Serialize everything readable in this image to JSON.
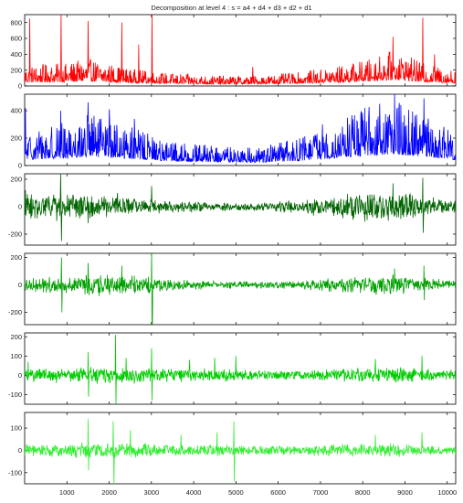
{
  "figure": {
    "title": "Decomposition at level 4 : s = a4 + d4 + d3 + d2 + d1"
  },
  "chart_data": [
    {
      "type": "line",
      "name": "",
      "color": "#ff0000",
      "xlim": [
        0,
        10200
      ],
      "ylim": [
        0,
        900
      ],
      "yticks": [
        0,
        200,
        400,
        600,
        800
      ],
      "spikes": [
        [
          120,
          850
        ],
        [
          550,
          170
        ],
        [
          860,
          900
        ],
        [
          1500,
          820
        ],
        [
          2300,
          800
        ],
        [
          2700,
          520
        ],
        [
          3010,
          900
        ],
        [
          5400,
          240
        ],
        [
          8720,
          620
        ],
        [
          9420,
          860
        ],
        [
          9700,
          400
        ]
      ],
      "envelope": [
        [
          0,
          180
        ],
        [
          1000,
          200
        ],
        [
          1500,
          240
        ],
        [
          2500,
          150
        ],
        [
          3500,
          110
        ],
        [
          4500,
          90
        ],
        [
          5500,
          90
        ],
        [
          6500,
          120
        ],
        [
          7500,
          180
        ],
        [
          8200,
          240
        ],
        [
          8800,
          320
        ],
        [
          9400,
          200
        ],
        [
          10200,
          140
        ]
      ]
    },
    {
      "type": "line",
      "name": "",
      "color": "#0000ff",
      "xlim": [
        0,
        10200
      ],
      "ylim": [
        0,
        520
      ],
      "yticks": [
        0,
        200,
        400
      ],
      "spikes": [
        [
          20,
          420
        ],
        [
          850,
          400
        ],
        [
          1500,
          460
        ],
        [
          2000,
          410
        ],
        [
          2600,
          340
        ],
        [
          7050,
          300
        ],
        [
          8050,
          420
        ],
        [
          8400,
          450
        ],
        [
          8750,
          520
        ],
        [
          9450,
          490
        ],
        [
          9650,
          260
        ]
      ],
      "envelope": [
        [
          0,
          170
        ],
        [
          1000,
          220
        ],
        [
          1500,
          260
        ],
        [
          2500,
          200
        ],
        [
          3500,
          120
        ],
        [
          4500,
          100
        ],
        [
          5500,
          90
        ],
        [
          6500,
          140
        ],
        [
          7500,
          230
        ],
        [
          8200,
          300
        ],
        [
          8800,
          330
        ],
        [
          9400,
          260
        ],
        [
          10200,
          160
        ]
      ]
    },
    {
      "type": "line",
      "name": "",
      "color": "#006400",
      "xlim": [
        0,
        10200
      ],
      "ylim": [
        -280,
        240
      ],
      "yticks": [
        -200,
        0,
        200
      ],
      "spikes": [
        [
          20,
          120
        ],
        [
          850,
          240
        ],
        [
          870,
          -250
        ],
        [
          1500,
          -120
        ],
        [
          2200,
          100
        ],
        [
          3000,
          150
        ],
        [
          8720,
          170
        ],
        [
          9420,
          210
        ],
        [
          9430,
          -190
        ]
      ],
      "envelope": [
        [
          0,
          90
        ],
        [
          1000,
          90
        ],
        [
          1500,
          80
        ],
        [
          2500,
          60
        ],
        [
          3500,
          40
        ],
        [
          4500,
          30
        ],
        [
          5500,
          30
        ],
        [
          6500,
          45
        ],
        [
          7500,
          80
        ],
        [
          8200,
          100
        ],
        [
          8800,
          110
        ],
        [
          9400,
          70
        ],
        [
          10200,
          40
        ]
      ]
    },
    {
      "type": "line",
      "name": "",
      "color": "#00a000",
      "xlim": [
        0,
        10200
      ],
      "ylim": [
        -290,
        230
      ],
      "yticks": [
        -200,
        0,
        200
      ],
      "spikes": [
        [
          870,
          200
        ],
        [
          880,
          -200
        ],
        [
          1500,
          160
        ],
        [
          2300,
          140
        ],
        [
          3000,
          230
        ],
        [
          3010,
          -280
        ],
        [
          3020,
          -290
        ],
        [
          8750,
          120
        ],
        [
          9450,
          140
        ],
        [
          9460,
          -110
        ]
      ],
      "envelope": [
        [
          0,
          45
        ],
        [
          1000,
          60
        ],
        [
          1500,
          70
        ],
        [
          2500,
          70
        ],
        [
          3500,
          40
        ],
        [
          4500,
          25
        ],
        [
          5500,
          22
        ],
        [
          6500,
          30
        ],
        [
          7500,
          50
        ],
        [
          8200,
          60
        ],
        [
          8800,
          65
        ],
        [
          9400,
          50
        ],
        [
          10200,
          30
        ]
      ]
    },
    {
      "type": "line",
      "name": "",
      "color": "#00cc00",
      "xlim": [
        0,
        10200
      ],
      "ylim": [
        -150,
        220
      ],
      "yticks": [
        -100,
        0,
        100,
        200
      ],
      "spikes": [
        [
          80,
          70
        ],
        [
          1500,
          120
        ],
        [
          1510,
          -110
        ],
        [
          2150,
          210
        ],
        [
          2160,
          -150
        ],
        [
          2400,
          90
        ],
        [
          3000,
          140
        ],
        [
          3010,
          -130
        ],
        [
          3900,
          80
        ],
        [
          4500,
          90
        ],
        [
          5000,
          100
        ],
        [
          8300,
          85
        ],
        [
          9400,
          100
        ]
      ],
      "envelope": [
        [
          0,
          30
        ],
        [
          1000,
          35
        ],
        [
          1500,
          40
        ],
        [
          2500,
          40
        ],
        [
          3500,
          30
        ],
        [
          4500,
          30
        ],
        [
          5500,
          22
        ],
        [
          6500,
          22
        ],
        [
          7500,
          30
        ],
        [
          8200,
          35
        ],
        [
          8800,
          38
        ],
        [
          9400,
          30
        ],
        [
          10200,
          25
        ]
      ]
    },
    {
      "type": "line",
      "name": "",
      "color": "#33ee33",
      "xlim": [
        0,
        10200
      ],
      "ylim": [
        -150,
        170
      ],
      "yticks": [
        -100,
        0,
        100
      ],
      "spikes": [
        [
          1500,
          140
        ],
        [
          1510,
          -90
        ],
        [
          2100,
          130
        ],
        [
          2110,
          -150
        ],
        [
          2500,
          90
        ],
        [
          3700,
          70
        ],
        [
          4550,
          80
        ],
        [
          4950,
          130
        ],
        [
          4960,
          -140
        ],
        [
          8300,
          70
        ],
        [
          9400,
          80
        ]
      ],
      "envelope": [
        [
          0,
          25
        ],
        [
          1000,
          28
        ],
        [
          1500,
          32
        ],
        [
          2500,
          32
        ],
        [
          3500,
          24
        ],
        [
          4500,
          24
        ],
        [
          5500,
          20
        ],
        [
          6500,
          20
        ],
        [
          7500,
          24
        ],
        [
          8200,
          28
        ],
        [
          8800,
          30
        ],
        [
          9400,
          24
        ],
        [
          10200,
          20
        ]
      ]
    }
  ],
  "x_axis": {
    "ticks": [
      1000,
      2000,
      3000,
      4000,
      5000,
      6000,
      7000,
      8000,
      9000,
      10000
    ]
  }
}
